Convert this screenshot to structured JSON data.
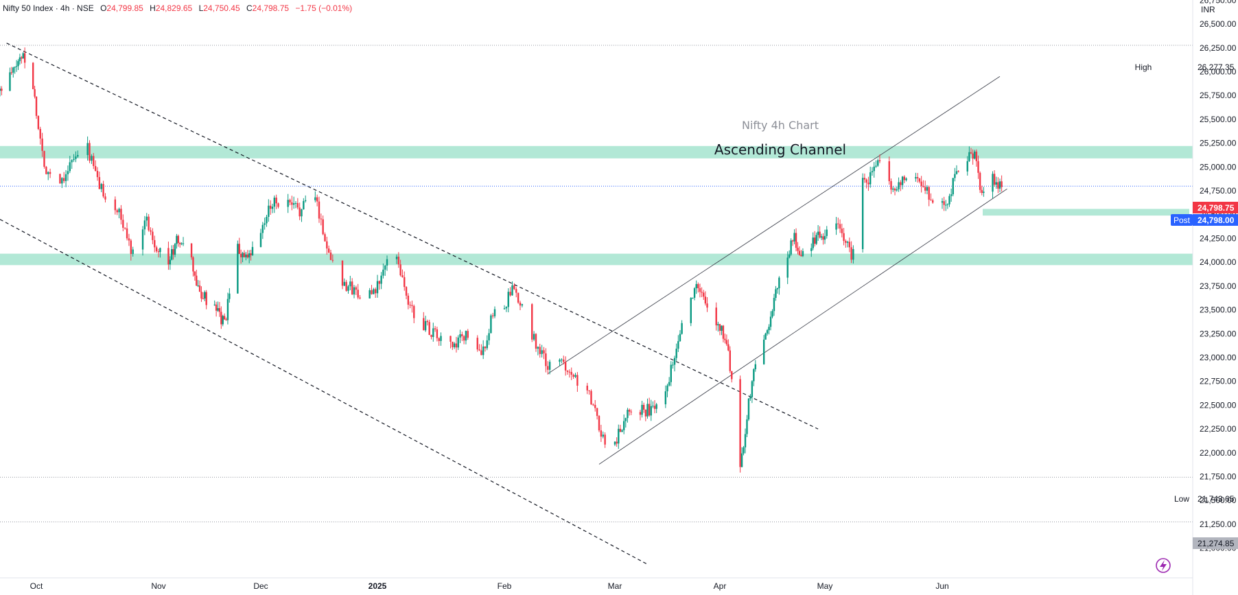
{
  "legend": {
    "symbol": "Nifty 50 Index · 4h · NSE",
    "open_label": "O",
    "open": "24,799.85",
    "high_label": "H",
    "high": "24,829.65",
    "low_label": "L",
    "low": "24,750.45",
    "close_label": "C",
    "close": "24,798.75",
    "change": "−1.75 (−0.01%)"
  },
  "currency": "INR",
  "annotations": {
    "subtitle": "Nifty 4h Chart",
    "title": "Ascending Channel"
  },
  "price_tags": {
    "high_label": "High",
    "high_value": "26,277.35",
    "low_label": "Low",
    "low_value": "21,743.65",
    "last_value": "24,798.75",
    "post_label": "Post",
    "post_value": "24,798.00",
    "extra_value": "21,274.85"
  },
  "colors": {
    "up": "#089981",
    "down": "#f23645",
    "zone": "#b2e8d6",
    "price_tag": "#f23645",
    "post_tag": "#2962ff",
    "extra_tag": "#b2b5be"
  },
  "chart_data": {
    "type": "candlestick",
    "y_axis": {
      "min": 21000,
      "max": 26750,
      "ticks": [
        21000,
        21250,
        21500,
        21750,
        22000,
        22250,
        22500,
        22750,
        23000,
        23250,
        23500,
        23750,
        24000,
        24250,
        24500,
        24750,
        25000,
        25250,
        25500,
        25750,
        26000,
        26250,
        26500,
        26750
      ]
    },
    "x_labels": [
      "Oct",
      "Nov",
      "Dec",
      "2025",
      "Feb",
      "Mar",
      "Apr",
      "May",
      "Jun"
    ],
    "support_resistance_zones": [
      [
        25090,
        25220
      ],
      [
        23970,
        24090
      ],
      [
        24490,
        24560
      ]
    ],
    "reference_lines": {
      "high": 26277.35,
      "low": 21743.65,
      "last": 24798.75,
      "extra": 21274.85
    },
    "close_path": [
      [
        "Sep 20",
        25800
      ],
      [
        "Sep 24",
        26000
      ],
      [
        "Sep 27",
        26200
      ],
      [
        "Sep 30",
        25850
      ],
      [
        "Oct 3",
        25000
      ],
      [
        "Oct 7",
        24850
      ],
      [
        "Oct 10",
        25050
      ],
      [
        "Oct 14",
        25200
      ],
      [
        "Oct 17",
        24800
      ],
      [
        "Oct 22",
        24500
      ],
      [
        "Oct 25",
        24150
      ],
      [
        "Oct 29",
        24450
      ],
      [
        "Oct 31",
        24200
      ],
      [
        "Nov 4",
        24000
      ],
      [
        "Nov 7",
        24250
      ],
      [
        "Nov 11",
        24000
      ],
      [
        "Nov 13",
        23700
      ],
      [
        "Nov 18",
        23500
      ],
      [
        "Nov 21",
        23350
      ],
      [
        "Nov 25",
        24150
      ],
      [
        "Nov 28",
        24000
      ],
      [
        "Dec 2",
        24300
      ],
      [
        "Dec 5",
        24650
      ],
      [
        "Dec 9",
        24600
      ],
      [
        "Dec 12",
        24550
      ],
      [
        "Dec 16",
        24700
      ],
      [
        "Dec 19",
        24150
      ],
      [
        "Dec 23",
        23800
      ],
      [
        "Dec 26",
        23700
      ],
      [
        "Dec 31",
        23650
      ],
      [
        "Jan 3",
        23950
      ],
      [
        "Jan 6",
        24100
      ],
      [
        "Jan 9",
        23550
      ],
      [
        "Jan 13",
        23350
      ],
      [
        "Jan 17",
        23200
      ],
      [
        "Jan 21",
        23100
      ],
      [
        "Jan 24",
        23250
      ],
      [
        "Jan 28",
        23000
      ],
      [
        "Jan 31",
        23450
      ],
      [
        "Feb 3",
        23550
      ],
      [
        "Feb 5",
        23700
      ],
      [
        "Feb 7",
        23550
      ],
      [
        "Feb 11",
        23150
      ],
      [
        "Feb 14",
        22900
      ],
      [
        "Feb 18",
        22950
      ],
      [
        "Feb 21",
        22800
      ],
      [
        "Feb 25",
        22550
      ],
      [
        "Feb 28",
        22150
      ],
      [
        "Mar 3",
        22100
      ],
      [
        "Mar 5",
        22300
      ],
      [
        "Mar 7",
        22500
      ],
      [
        "Mar 11",
        22450
      ],
      [
        "Mar 14",
        22450
      ],
      [
        "Mar 18",
        22800
      ],
      [
        "Mar 21",
        23300
      ],
      [
        "Mar 24",
        23650
      ],
      [
        "Mar 26",
        23750
      ],
      [
        "Mar 28",
        23550
      ],
      [
        "Apr 1",
        23300
      ],
      [
        "Apr 3",
        23200
      ],
      [
        "Apr 4",
        22900
      ],
      [
        "Apr 7",
        21850
      ],
      [
        "Apr 9",
        22400
      ],
      [
        "Apr 11",
        22850
      ],
      [
        "Apr 15",
        23300
      ],
      [
        "Apr 17",
        23600
      ],
      [
        "Apr 21",
        24100
      ],
      [
        "Apr 23",
        24250
      ],
      [
        "Apr 25",
        24050
      ],
      [
        "Apr 29",
        24250
      ],
      [
        "May 2",
        24300
      ],
      [
        "May 6",
        24350
      ],
      [
        "May 8",
        24200
      ],
      [
        "May 9",
        24050
      ],
      [
        "May 12",
        24850
      ],
      [
        "May 14",
        24900
      ],
      [
        "May 16",
        25050
      ],
      [
        "May 20",
        24750
      ],
      [
        "May 23",
        24900
      ],
      [
        "May 27",
        24850
      ],
      [
        "May 30",
        24700
      ],
      [
        "Jun 3",
        24600
      ],
      [
        "Jun 6",
        24950
      ],
      [
        "Jun 9",
        25100
      ],
      [
        "Jun 11",
        25150
      ],
      [
        "Jun 13",
        24700
      ],
      [
        "Jun 16",
        24900
      ],
      [
        "Jun 18",
        24800
      ]
    ],
    "trendlines": [
      {
        "style": "dashed",
        "from": [
          "Sep 22",
          26300
        ],
        "to": [
          "Apr 30",
          22250
        ]
      },
      {
        "style": "dashed",
        "from": [
          "Sep 20",
          24450
        ],
        "to": [
          "Mar 12",
          20830
        ]
      },
      {
        "style": "solid",
        "from": [
          "Feb 14",
          22830
        ],
        "to": [
          "Jun 18",
          25950
        ]
      },
      {
        "style": "solid",
        "from": [
          "Feb 27",
          21880
        ],
        "to": [
          "Jun 20",
          24770
        ]
      }
    ]
  }
}
